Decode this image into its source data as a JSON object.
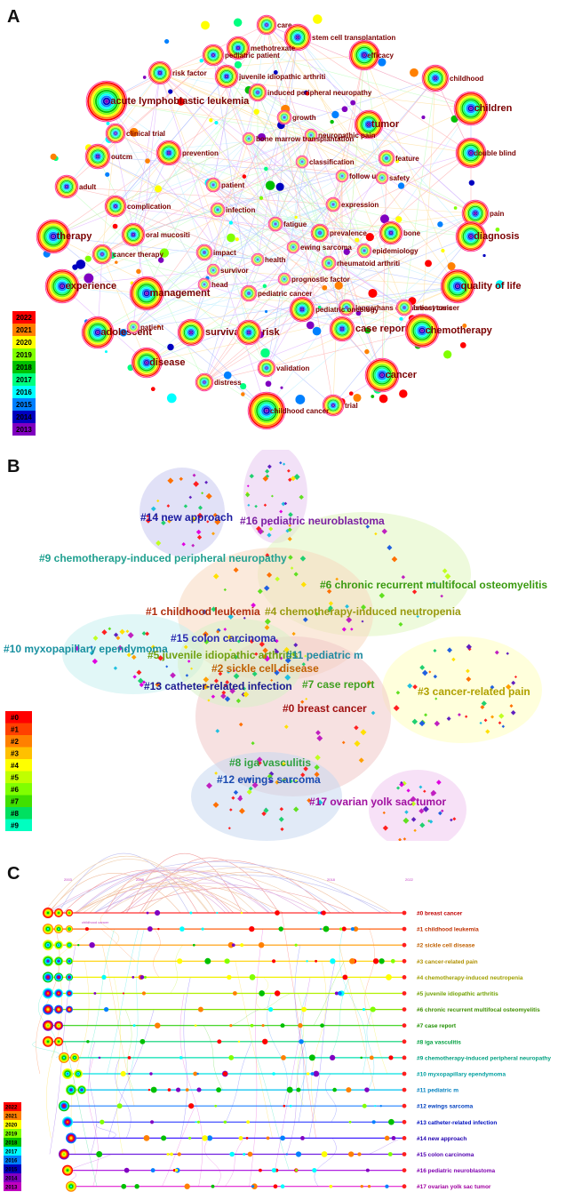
{
  "panels": {
    "a": {
      "letter": "A",
      "legend_years": [
        "2022",
        "2021",
        "2020",
        "2019",
        "2018",
        "2017",
        "2016",
        "2015",
        "2014",
        "2013"
      ],
      "year_colors": [
        "#ff0000",
        "#ff8000",
        "#ffff00",
        "#80ff00",
        "#00c000",
        "#00ff80",
        "#00ffff",
        "#0080ff",
        "#0000c0",
        "#8000c0"
      ],
      "keywords": [
        {
          "text": "care",
          "big": false
        },
        {
          "text": "stem cell transplantation",
          "big": false
        },
        {
          "text": "methotrexate",
          "big": false
        },
        {
          "text": "pediatric patient",
          "big": false
        },
        {
          "text": "efficacy",
          "big": false
        },
        {
          "text": "risk factor",
          "big": false
        },
        {
          "text": "juvenile idiopathic arthriti",
          "big": false
        },
        {
          "text": "childhood",
          "big": false
        },
        {
          "text": "acute lymphoblastic leukemia",
          "big": true
        },
        {
          "text": "induced peripheral neuropathy",
          "big": false
        },
        {
          "text": "children",
          "big": true
        },
        {
          "text": "growth",
          "big": false
        },
        {
          "text": "tumor",
          "big": true
        },
        {
          "text": "clinical trial",
          "big": false
        },
        {
          "text": "neuropathic pain",
          "big": false
        },
        {
          "text": "bone marrow transplantation",
          "big": false
        },
        {
          "text": "outcm",
          "big": false
        },
        {
          "text": "prevention",
          "big": false
        },
        {
          "text": "classification",
          "big": false
        },
        {
          "text": "feature",
          "big": false
        },
        {
          "text": "double blind",
          "big": false
        },
        {
          "text": "follow up",
          "big": false
        },
        {
          "text": "safety",
          "big": false
        },
        {
          "text": "adult",
          "big": false
        },
        {
          "text": "patient",
          "big": false
        },
        {
          "text": "complication",
          "big": false
        },
        {
          "text": "infection",
          "big": false
        },
        {
          "text": "expression",
          "big": false
        },
        {
          "text": "pain",
          "big": false
        },
        {
          "text": "therapy",
          "big": true
        },
        {
          "text": "oral mucositi",
          "big": false
        },
        {
          "text": "fatigue",
          "big": false
        },
        {
          "text": "prevalence",
          "big": false
        },
        {
          "text": "bone",
          "big": false
        },
        {
          "text": "diagnosis",
          "big": true
        },
        {
          "text": "cancer therapy",
          "big": false
        },
        {
          "text": "impact",
          "big": false
        },
        {
          "text": "health",
          "big": false
        },
        {
          "text": "ewing sarcoma",
          "big": false
        },
        {
          "text": "epidemiology",
          "big": false
        },
        {
          "text": "survivor",
          "big": false
        },
        {
          "text": "rheumatoid arthriti",
          "big": false
        },
        {
          "text": "experience",
          "big": true
        },
        {
          "text": "prognostic factor",
          "big": false
        },
        {
          "text": "management",
          "big": true
        },
        {
          "text": "head",
          "big": false
        },
        {
          "text": "pediatric cancer",
          "big": false
        },
        {
          "text": "quality of life",
          "big": true
        },
        {
          "text": "langerhans cell histiocytosis",
          "big": false
        },
        {
          "text": "breast cancer",
          "big": false
        },
        {
          "text": "pediatric oncology",
          "big": false
        },
        {
          "text": "adolescent",
          "big": true
        },
        {
          "text": "patient",
          "big": false
        },
        {
          "text": "survival",
          "big": true
        },
        {
          "text": "risk",
          "big": true
        },
        {
          "text": "case report",
          "big": true
        },
        {
          "text": "chemotherapy",
          "big": true
        },
        {
          "text": "disease",
          "big": true
        },
        {
          "text": "validation",
          "big": false
        },
        {
          "text": "cancer",
          "big": true
        },
        {
          "text": "distress",
          "big": false
        },
        {
          "text": "trial",
          "big": false
        },
        {
          "text": "childhood cancer",
          "big": false
        }
      ]
    },
    "b": {
      "letter": "B",
      "legend_clusters": [
        "#0",
        "#1",
        "#2",
        "#3",
        "#4",
        "#5",
        "#6",
        "#7",
        "#8",
        "#9"
      ],
      "legend_colors": [
        "#ff0000",
        "#ff4000",
        "#ff8000",
        "#ffc000",
        "#ffff00",
        "#c0ff00",
        "#80ff00",
        "#40e000",
        "#00e060",
        "#00ffc0"
      ],
      "clusters": [
        {
          "label": "#14 new approach",
          "color": "#1a1aa0"
        },
        {
          "label": "#16 pediatric neuroblastoma",
          "color": "#7b1fa2"
        },
        {
          "label": "#9 chemotherapy-induced peripheral neuropathy",
          "color": "#20a090"
        },
        {
          "label": "#6 chronic recurrent multifocal osteomyelitis",
          "color": "#3a9a10"
        },
        {
          "label": "#1 childhood leukemia",
          "color": "#b03010"
        },
        {
          "label": "#4 chemotherapy-induced neutropenia",
          "color": "#9a9a10"
        },
        {
          "label": "#15 colon carcinoma",
          "color": "#2a2ab0"
        },
        {
          "label": "#10 myxopapillary ependymoma",
          "color": "#1890a0"
        },
        {
          "label": "#5 juvenile idiopathic arthritis",
          "color": "#70a010"
        },
        {
          "label": "#11 pediatric m",
          "color": "#208aa0"
        },
        {
          "label": "#2 sickle cell disease",
          "color": "#c06000"
        },
        {
          "label": "#13 catheter-related infection",
          "color": "#1a1a90"
        },
        {
          "label": "#7 case report",
          "color": "#40a020"
        },
        {
          "label": "#3 cancer-related pain",
          "color": "#b0a000"
        },
        {
          "label": "#0 breast cancer",
          "color": "#a01010"
        },
        {
          "label": "#8 iga vasculitis",
          "color": "#30a040"
        },
        {
          "label": "#12 ewings sarcoma",
          "color": "#1a4ab0"
        },
        {
          "label": "#17 ovarian yolk sac tumor",
          "color": "#a010a0"
        }
      ]
    },
    "c": {
      "letter": "C",
      "years_top": [
        "2003",
        "2008",
        "2018",
        "2022"
      ],
      "mini_label": "childhood cancer",
      "legend_years": [
        "2022",
        "2021",
        "2020",
        "2019",
        "2018",
        "2017",
        "2016",
        "2015",
        "2014",
        "2013"
      ],
      "timelines": [
        {
          "label": "#0 breast cancer",
          "color": "#c00000",
          "line": "#ff3030"
        },
        {
          "label": "#1 childhood leukemia",
          "color": "#c03000",
          "line": "#ff6010"
        },
        {
          "label": "#2 sickle cell disease",
          "color": "#c06000",
          "line": "#ff9a00"
        },
        {
          "label": "#3 cancer-related pain",
          "color": "#b09000",
          "line": "#ffd000"
        },
        {
          "label": "#4 chemotherapy-induced neutropenia",
          "color": "#a0a000",
          "line": "#f0f000"
        },
        {
          "label": "#5 juvenile idiopathic arthritis",
          "color": "#70a000",
          "line": "#b0f000"
        },
        {
          "label": "#6 chronic recurrent multifocal osteomyelitis",
          "color": "#409000",
          "line": "#80e000"
        },
        {
          "label": "#7 case report",
          "color": "#209000",
          "line": "#30d010"
        },
        {
          "label": "#8 iga vasculitis",
          "color": "#00a040",
          "line": "#00d070"
        },
        {
          "label": "#9 chemotherapy-induced peripheral neuropathy",
          "color": "#00a080",
          "line": "#00e0b0"
        },
        {
          "label": "#10 myxopapillary ependymoma",
          "color": "#00a0a0",
          "line": "#00e0e0"
        },
        {
          "label": "#11 pediatric m",
          "color": "#0080c0",
          "line": "#00c0f0"
        },
        {
          "label": "#12 ewings sarcoma",
          "color": "#0040c0",
          "line": "#2080ff"
        },
        {
          "label": "#13 catheter-related infection",
          "color": "#0010c0",
          "line": "#3040ff"
        },
        {
          "label": "#14 new approach",
          "color": "#2000b0",
          "line": "#4020ff"
        },
        {
          "label": "#15 colon carcinoma",
          "color": "#5000b0",
          "line": "#7020e0"
        },
        {
          "label": "#16 pediatric neuroblastoma",
          "color": "#8000b0",
          "line": "#b020e0"
        },
        {
          "label": "#17 ovarian yolk sac tumor",
          "color": "#a000a0",
          "line": "#e020d0"
        }
      ]
    }
  }
}
